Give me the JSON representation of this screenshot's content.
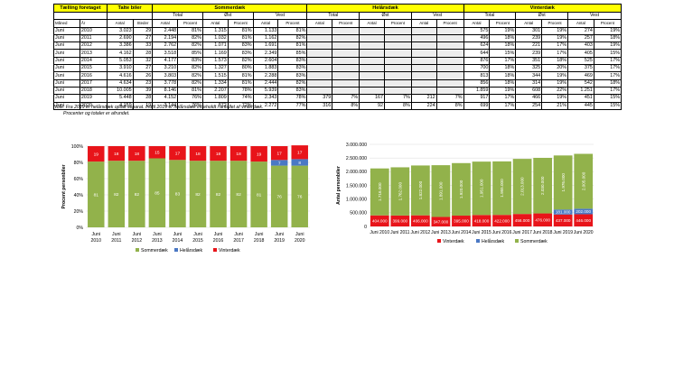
{
  "table": {
    "header_top": [
      "Tælling foretaget",
      "Talte biler",
      "Sommerdæk",
      "Helårsdæk",
      "Vinterdæk"
    ],
    "header_mid": [
      "Total",
      "Øst",
      "Vest",
      "Total",
      "Øst",
      "Vest",
      "Total",
      "Øst",
      "Vest"
    ],
    "header_low": [
      "Måned",
      "År",
      "Antal",
      "Steder",
      "Antal",
      "Procent",
      "Antal",
      "Procent",
      "Antal",
      "Procent",
      "Antal",
      "Procent",
      "Antal",
      "Procent",
      "Antal",
      "Procent",
      "Antal",
      "Procent",
      "Antal",
      "Procent",
      "Antal",
      "Procent"
    ],
    "rows": [
      [
        "Juni",
        "2010",
        "3.023",
        "29",
        "2.448",
        "81%",
        "1.315",
        "81%",
        "1.133",
        "81%",
        "",
        "",
        "",
        "",
        "",
        "",
        "575",
        "19%",
        "301",
        "19%",
        "274",
        "19%"
      ],
      [
        "Juni",
        "2011",
        "2.690",
        "27",
        "2.194",
        "82%",
        "1.032",
        "81%",
        "1.162",
        "82%",
        "",
        "",
        "",
        "",
        "",
        "",
        "496",
        "18%",
        "239",
        "19%",
        "257",
        "18%"
      ],
      [
        "Juni",
        "2012",
        "3.386",
        "33",
        "2.762",
        "82%",
        "1.071",
        "83%",
        "1.691",
        "81%",
        "",
        "",
        "",
        "",
        "",
        "",
        "624",
        "18%",
        "221",
        "17%",
        "403",
        "19%"
      ],
      [
        "Juni",
        "2013",
        "4.162",
        "28",
        "3.518",
        "85%",
        "1.169",
        "83%",
        "2.349",
        "85%",
        "",
        "",
        "",
        "",
        "",
        "",
        "644",
        "15%",
        "239",
        "17%",
        "405",
        "15%"
      ],
      [
        "Juni",
        "2014",
        "5.053",
        "32",
        "4.177",
        "83%",
        "1.573",
        "82%",
        "2.604",
        "83%",
        "",
        "",
        "",
        "",
        "",
        "",
        "876",
        "17%",
        "351",
        "18%",
        "525",
        "17%"
      ],
      [
        "Juni",
        "2015",
        "3.910",
        "27",
        "3.210",
        "82%",
        "1.327",
        "80%",
        "1.883",
        "83%",
        "",
        "",
        "",
        "",
        "",
        "",
        "700",
        "18%",
        "325",
        "20%",
        "375",
        "17%"
      ],
      [
        "Juni",
        "2016",
        "4.616",
        "26",
        "3.803",
        "82%",
        "1.515",
        "81%",
        "2.288",
        "83%",
        "",
        "",
        "",
        "",
        "",
        "",
        "813",
        "18%",
        "344",
        "19%",
        "469",
        "17%"
      ],
      [
        "Juni",
        "2017",
        "4.634",
        "23",
        "3.778",
        "82%",
        "1.334",
        "81%",
        "2.444",
        "82%",
        "",
        "",
        "",
        "",
        "",
        "",
        "856",
        "18%",
        "314",
        "19%",
        "542",
        "18%"
      ],
      [
        "Juni",
        "2018",
        "10.005",
        "39",
        "8.146",
        "81%",
        "2.207",
        "78%",
        "5.939",
        "83%",
        "",
        "",
        "",
        "",
        "",
        "",
        "1.859",
        "19%",
        "608",
        "22%",
        "1.251",
        "17%"
      ],
      [
        "Juni",
        "2019",
        "5.448",
        "28",
        "4.152",
        "76%",
        "1.809",
        "74%",
        "2.343",
        "78%",
        "379",
        "7%",
        "167",
        "7%",
        "212",
        "7%",
        "917",
        "17%",
        "466",
        "19%",
        "451",
        "15%"
      ],
      [
        "Juni",
        "2020",
        "4.159",
        "19",
        "3.144",
        "76%",
        "872",
        "72%",
        "2.272",
        "77%",
        "316",
        "8%",
        "92",
        "8%",
        "224",
        "8%",
        "699",
        "17%",
        "254",
        "21%",
        "445",
        "15%"
      ]
    ]
  },
  "note": {
    "line1": "Note: Fra 2019 er helårsdæk optalt separat. Indtil 2019 er helårsdæk indeholdt i antallet af vinterdæk.",
    "line2": "Procenter og totaler er afrundet."
  },
  "chart_data": [
    {
      "type": "bar",
      "stacked": true,
      "title": "",
      "xlabel": "",
      "ylabel": "Procent personbiler",
      "categories": [
        "Juni 2010",
        "Juni 2011",
        "Juni 2012",
        "Juni 2013",
        "Juni 2014",
        "Juni 2015",
        "Juni 2016",
        "Juni 2017",
        "Juni 2018",
        "Juni 2019",
        "Juni 2020"
      ],
      "ylim": [
        0,
        100
      ],
      "yticks": [
        "0%",
        "20%",
        "40%",
        "60%",
        "80%",
        "100%"
      ],
      "series": [
        {
          "name": "Sommerdæk",
          "color": "#92b24b",
          "values": [
            81,
            82,
            82,
            85,
            83,
            82,
            82,
            82,
            81,
            76,
            76
          ]
        },
        {
          "name": "Helårsdæk",
          "color": "#4a78c4",
          "values": [
            0,
            0,
            0,
            0,
            0,
            0,
            0,
            0,
            0,
            7,
            8
          ]
        },
        {
          "name": "Vinterdæk",
          "color": "#e8141a",
          "values": [
            19,
            18,
            18,
            15,
            17,
            18,
            18,
            18,
            19,
            17,
            17
          ]
        }
      ],
      "legend": "bottom"
    },
    {
      "type": "bar",
      "stacked": true,
      "title": "",
      "xlabel": "",
      "ylabel": "Antal personbiler",
      "categories": [
        "Juni 2010",
        "Juni 2011",
        "Juni 2012",
        "Juni 2013",
        "Juni 2014",
        "Juni 2015",
        "Juni 2016",
        "Juni 2017",
        "Juni 2018",
        "Juni 2019",
        "Juni 2020"
      ],
      "ylim": [
        0,
        3000000
      ],
      "yticks": [
        "0",
        "500.000",
        "1.000.000",
        "1.500.000",
        "2.000.000",
        "2.500.000",
        "3.000.000"
      ],
      "series": [
        {
          "name": "Vinterdæk",
          "color": "#e8141a",
          "values": [
            404000,
            399000,
            406000,
            347000,
            395000,
            418000,
            422000,
            456000,
            476000,
            437000,
            446000
          ],
          "labels": [
            "404.000",
            "399.000",
            "406.000",
            "347.000",
            "395.000",
            "418.000",
            "422.000",
            "456.000",
            "476.000",
            "437.000",
            "446.000"
          ]
        },
        {
          "name": "Helårsdæk",
          "color": "#4a78c4",
          "values": [
            0,
            0,
            0,
            0,
            0,
            0,
            0,
            0,
            0,
            181000,
            202000
          ],
          "labels": [
            "",
            "",
            "",
            "",
            "",
            "",
            "",
            "",
            "",
            "181.000",
            "202.000"
          ]
        },
        {
          "name": "Sommerdæk",
          "color": "#92b24b",
          "values": [
            1716000,
            1762000,
            1822000,
            1891000,
            1920000,
            1951000,
            1955000,
            2013000,
            2030000,
            1976000,
            2005000
          ],
          "labels": [
            "1.716.000",
            "1.762.000",
            "1.822.000",
            "1.891.000",
            "1.920.000",
            "1.951.000",
            "1.955.000",
            "2.013.000",
            "2.030.000",
            "1.976.000",
            "2.005.000"
          ]
        }
      ],
      "legend": "bottom"
    }
  ]
}
